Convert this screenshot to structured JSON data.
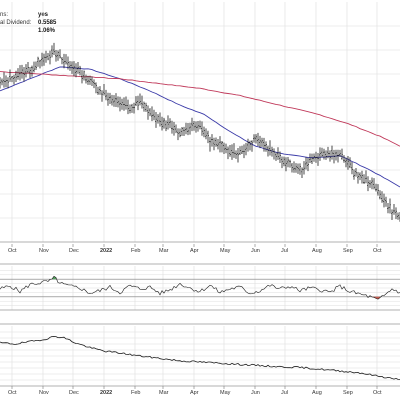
{
  "info_panel": {
    "rows": [
      {
        "label": "ns:",
        "value": "yes"
      },
      {
        "label": "al Dividend:",
        "value": "0.5585"
      },
      {
        "label": "",
        "value": "1.06%"
      }
    ]
  },
  "colors": {
    "price": "#1a1a1a",
    "ma_short": "#3a3aa8",
    "ma_long": "#c0395a",
    "grid": "#dddddd",
    "axis_text": "#333333",
    "band_line": "#7a7a7a",
    "up_fill": "#2e8b3a",
    "down_fill": "#c0392b"
  },
  "chart_data": [
    {
      "type": "line",
      "panel": "price",
      "x_ticks": [
        "Oct",
        "Nov",
        "Dec",
        "2022",
        "Feb",
        "Mar",
        "Apr",
        "May",
        "Jun",
        "Jul",
        "Aug",
        "Sep",
        "Oct"
      ],
      "x_tick_days": [
        12,
        43,
        73,
        104,
        135,
        163,
        194,
        224,
        255,
        285,
        316,
        347,
        377
      ],
      "x_range": [
        0,
        400
      ],
      "y_range": [
        0,
        100
      ],
      "grid": true,
      "series": [
        {
          "role": "price",
          "style": "ohlc-bars",
          "x": [
            0,
            20,
            35,
            43,
            55,
            62,
            73,
            90,
            104,
            118,
            130,
            140,
            148,
            160,
            172,
            178,
            185,
            195,
            205,
            210,
            220,
            232,
            240,
            250,
            258,
            264,
            272,
            280,
            290,
            300,
            310,
            320,
            330,
            338,
            345,
            352,
            360,
            370,
            380,
            388,
            395,
            400
          ],
          "y": [
            66,
            70,
            73,
            77,
            79,
            76,
            73,
            67,
            62,
            58,
            56,
            58,
            55,
            50,
            48,
            45,
            47,
            49,
            46,
            42,
            40,
            38,
            37,
            41,
            44,
            41,
            38,
            35,
            33,
            30,
            34,
            36,
            37,
            36,
            35,
            30,
            27,
            25,
            20,
            15,
            12,
            10
          ]
        },
        {
          "role": "ma_short",
          "x": [
            0,
            30,
            60,
            90,
            120,
            150,
            180,
            205,
            230,
            255,
            280,
            310,
            340,
            370,
            400
          ],
          "y": [
            63,
            68,
            73,
            72,
            68,
            63,
            57,
            53,
            46,
            40,
            37,
            35,
            36,
            30,
            23
          ]
        },
        {
          "role": "ma_long",
          "x": [
            0,
            40,
            80,
            120,
            160,
            200,
            240,
            280,
            320,
            350,
            380,
            400
          ],
          "y": [
            71,
            70,
            69,
            68,
            66,
            64,
            61,
            57,
            53,
            49,
            44,
            40
          ]
        }
      ]
    },
    {
      "type": "line",
      "panel": "oscillator",
      "x_range": [
        0,
        400
      ],
      "y_range": [
        0,
        100
      ],
      "levels": [
        70,
        30
      ],
      "series": [
        {
          "role": "oscillator",
          "x": [
            0,
            10,
            20,
            30,
            40,
            50,
            55,
            60,
            70,
            80,
            90,
            100,
            110,
            120,
            130,
            140,
            150,
            160,
            170,
            180,
            190,
            200,
            210,
            220,
            230,
            240,
            250,
            260,
            270,
            280,
            290,
            300,
            310,
            320,
            330,
            340,
            350,
            360,
            370,
            378,
            385,
            392,
            400
          ],
          "y": [
            48,
            55,
            42,
            58,
            62,
            66,
            74,
            60,
            54,
            50,
            38,
            44,
            52,
            40,
            55,
            48,
            52,
            38,
            46,
            60,
            50,
            42,
            56,
            40,
            48,
            52,
            38,
            44,
            56,
            48,
            54,
            44,
            50,
            46,
            40,
            54,
            42,
            36,
            30,
            22,
            34,
            48,
            40
          ]
        }
      ]
    },
    {
      "type": "line",
      "panel": "relative",
      "x_ticks": [
        "Oct",
        "Nov",
        "Dec",
        "2022",
        "Feb",
        "Mar",
        "Apr",
        "May",
        "Jun",
        "Jul",
        "Aug",
        "Sep",
        "Oct"
      ],
      "x_tick_days": [
        12,
        43,
        73,
        104,
        135,
        163,
        194,
        224,
        255,
        285,
        316,
        347,
        377
      ],
      "x_range": [
        0,
        400
      ],
      "y_range": [
        0,
        100
      ],
      "series": [
        {
          "role": "relative",
          "x": [
            0,
            15,
            30,
            45,
            55,
            65,
            75,
            90,
            105,
            120,
            140,
            160,
            180,
            200,
            220,
            240,
            260,
            280,
            300,
            320,
            340,
            360,
            380,
            395,
            400
          ],
          "y": [
            72,
            70,
            74,
            78,
            83,
            80,
            72,
            64,
            58,
            55,
            50,
            46,
            42,
            40,
            38,
            36,
            34,
            32,
            31,
            28,
            25,
            22,
            16,
            12,
            10
          ]
        }
      ]
    }
  ]
}
